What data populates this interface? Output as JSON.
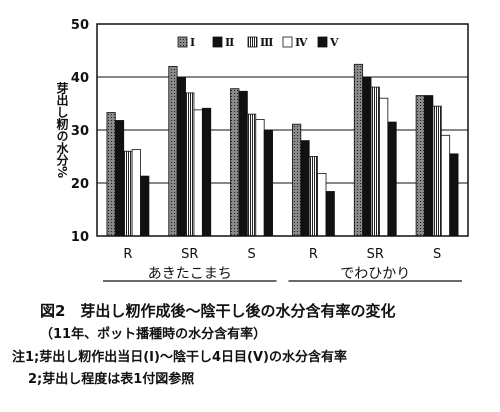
{
  "chart_data": {
    "type": "bar",
    "title": "",
    "ylabel": "芽出し籾の水分%",
    "xlabel": "",
    "ylim": [
      10,
      50
    ],
    "yticks": [
      10,
      20,
      30,
      40,
      50
    ],
    "grid": true,
    "legend_position": "top-right",
    "categories": [
      "R",
      "SR",
      "S",
      "R",
      "SR",
      "S"
    ],
    "variety_groups": [
      {
        "label": "あきたこまち",
        "categories": [
          "R",
          "SR",
          "S"
        ]
      },
      {
        "label": "でわひかり",
        "categories": [
          "R",
          "SR",
          "S"
        ]
      }
    ],
    "series": [
      {
        "name": "Ⅰ",
        "values": [
          33.3,
          42.0,
          37.8,
          31.1,
          42.4,
          36.5
        ]
      },
      {
        "name": "Ⅱ",
        "values": [
          31.8,
          40.0,
          37.3,
          28.0,
          40.0,
          36.5
        ]
      },
      {
        "name": "Ⅲ",
        "values": [
          26.0,
          37.0,
          33.0,
          25.0,
          38.1,
          34.5
        ]
      },
      {
        "name": "Ⅳ",
        "values": [
          26.3,
          33.8,
          32.0,
          21.8,
          36.0,
          29.0
        ]
      },
      {
        "name": "Ⅴ",
        "values": [
          21.3,
          34.1,
          30.0,
          18.4,
          31.5,
          25.5
        ]
      }
    ],
    "series_styles": [
      {
        "fill": "#7a7a7a",
        "pattern": "dots"
      },
      {
        "fill": "#111111",
        "pattern": "solid"
      },
      {
        "fill": "#ffffff",
        "pattern": "vlines"
      },
      {
        "fill": "#ffffff",
        "pattern": "plain"
      },
      {
        "fill": "#111111",
        "pattern": "solid"
      }
    ]
  },
  "caption": {
    "title": "図2　芽出し籾作成後～陰干し後の水分含有率の変化",
    "subtitle": "（11年、ポット播種時の水分含有率）",
    "note1": "注1;芽出し籾作出当日(Ⅰ)～陰干し4日目(Ⅴ)の水分含有率",
    "note2": "2;芽出し程度は表1付図参照"
  }
}
